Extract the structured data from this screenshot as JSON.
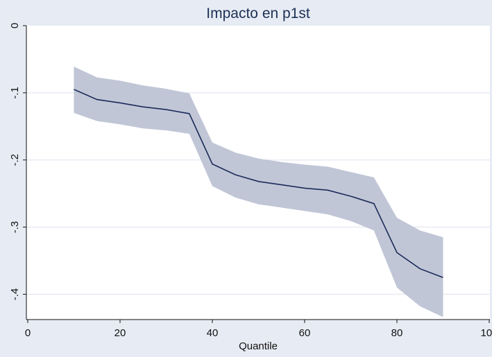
{
  "chart_data": {
    "type": "area",
    "title": "Impacto en p1st",
    "xlabel": "Quantile",
    "ylabel": "",
    "xlim": [
      0,
      100
    ],
    "ylim": [
      -0.44,
      0
    ],
    "x_ticks": [
      0,
      20,
      40,
      60,
      80,
      100
    ],
    "x_tick_labels": [
      "0",
      "20",
      "40",
      "60",
      "80",
      "100"
    ],
    "y_ticks": [
      0,
      -0.1,
      -0.2,
      -0.3,
      -0.4
    ],
    "y_tick_labels": [
      "0",
      "-.1",
      "-.2",
      "-.3",
      "-.4"
    ],
    "grid": true,
    "legend": "none",
    "colors": {
      "background": "#e7ebf3",
      "plot_area": "#ffffff",
      "band": "#c0c6d6",
      "line": "#1c2b5a",
      "grid": "#e7ebf3",
      "title": "#1d3155"
    },
    "x": [
      10,
      15,
      20,
      25,
      30,
      35,
      40,
      45,
      50,
      55,
      60,
      65,
      70,
      75,
      80,
      85,
      90
    ],
    "series": [
      {
        "values": [
          -0.095,
          -0.11,
          -0.115,
          -0.121,
          -0.125,
          -0.131,
          -0.206,
          -0.222,
          -0.232,
          -0.237,
          -0.242,
          -0.245,
          -0.254,
          -0.265,
          -0.338,
          -0.362,
          -0.375
        ]
      }
    ],
    "band": {
      "upper": [
        -0.061,
        -0.077,
        -0.082,
        -0.089,
        -0.094,
        -0.101,
        -0.174,
        -0.189,
        -0.198,
        -0.203,
        -0.207,
        -0.21,
        -0.218,
        -0.226,
        -0.286,
        -0.305,
        -0.315
      ],
      "lower": [
        -0.13,
        -0.142,
        -0.147,
        -0.153,
        -0.156,
        -0.161,
        -0.239,
        -0.256,
        -0.266,
        -0.271,
        -0.276,
        -0.281,
        -0.291,
        -0.305,
        -0.39,
        -0.418,
        -0.434
      ]
    }
  }
}
